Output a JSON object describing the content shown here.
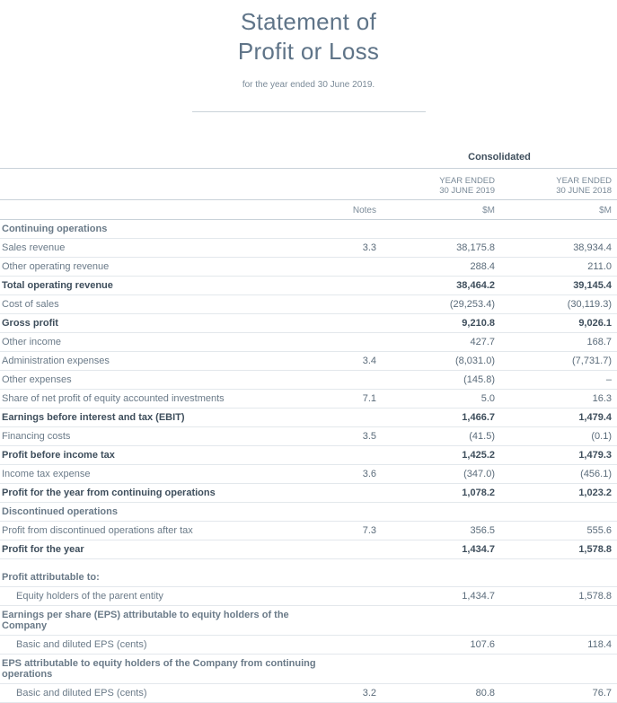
{
  "title_line1": "Statement of",
  "title_line2": "Profit or Loss",
  "subtitle": "for the year ended 30 June 2019.",
  "columns": {
    "group_header": "Consolidated",
    "notes_label": "Notes",
    "y1_header_line1": "YEAR ENDED",
    "y1_header_line2": "30 JUNE 2019",
    "y2_header_line1": "YEAR ENDED",
    "y2_header_line2": "30 JUNE 2018",
    "unit": "$M"
  },
  "rows": [
    {
      "type": "section",
      "label": "Continuing operations"
    },
    {
      "type": "row",
      "label": "Sales revenue",
      "note": "3.3",
      "y1": "38,175.8",
      "y2": "38,934.4"
    },
    {
      "type": "row",
      "label": "Other operating revenue",
      "note": "",
      "y1": "288.4",
      "y2": "211.0"
    },
    {
      "type": "bold",
      "label": "Total operating revenue",
      "note": "",
      "y1": "38,464.2",
      "y2": "39,145.4"
    },
    {
      "type": "row",
      "label": "Cost of sales",
      "note": "",
      "y1": "(29,253.4)",
      "y2": "(30,119.3)"
    },
    {
      "type": "bold",
      "label": "Gross profit",
      "note": "",
      "y1": "9,210.8",
      "y2": "9,026.1"
    },
    {
      "type": "row",
      "label": "Other income",
      "note": "",
      "y1": "427.7",
      "y2": "168.7"
    },
    {
      "type": "row",
      "label": "Administration expenses",
      "note": "3.4",
      "y1": "(8,031.0)",
      "y2": "(7,731.7)"
    },
    {
      "type": "row",
      "label": "Other expenses",
      "note": "",
      "y1": "(145.8)",
      "y2": "–"
    },
    {
      "type": "row",
      "label": "Share of net profit of equity accounted investments",
      "note": "7.1",
      "y1": "5.0",
      "y2": "16.3"
    },
    {
      "type": "bold",
      "label": "Earnings before interest and tax (EBIT)",
      "note": "",
      "y1": "1,466.7",
      "y2": "1,479.4"
    },
    {
      "type": "row",
      "label": "Financing costs",
      "note": "3.5",
      "y1": "(41.5)",
      "y2": "(0.1)"
    },
    {
      "type": "bold",
      "label": "Profit before income tax",
      "note": "",
      "y1": "1,425.2",
      "y2": "1,479.3"
    },
    {
      "type": "row",
      "label": "Income tax expense",
      "note": "3.6",
      "y1": "(347.0)",
      "y2": "(456.1)"
    },
    {
      "type": "bold",
      "label": "Profit for the year from continuing operations",
      "note": "",
      "y1": "1,078.2",
      "y2": "1,023.2"
    },
    {
      "type": "section",
      "label": "Discontinued operations"
    },
    {
      "type": "row",
      "label": "Profit from discontinued operations after tax",
      "note": "7.3",
      "y1": "356.5",
      "y2": "555.6"
    },
    {
      "type": "bold",
      "label": "Profit for the year",
      "note": "",
      "y1": "1,434.7",
      "y2": "1,578.8"
    },
    {
      "type": "spacer"
    },
    {
      "type": "section",
      "label": "Profit attributable to:"
    },
    {
      "type": "row",
      "indent": true,
      "label": "Equity holders of the parent entity",
      "note": "",
      "y1": "1,434.7",
      "y2": "1,578.8"
    },
    {
      "type": "section",
      "label": "Earnings per share (EPS) attributable to equity holders of the Company"
    },
    {
      "type": "row",
      "indent": true,
      "label": "Basic and diluted EPS (cents)",
      "note": "",
      "y1": "107.6",
      "y2": "118.4"
    },
    {
      "type": "section",
      "label": "EPS attributable to equity holders of the Company from continuing operations"
    },
    {
      "type": "row",
      "indent": true,
      "label": "Basic and diluted EPS (cents)",
      "note": "3.2",
      "y1": "80.8",
      "y2": "76.7"
    }
  ],
  "style": {
    "text_color": "#5a6b7a",
    "bold_color": "#3e4e5c",
    "rule_color": "#c9d2d9",
    "row_rule_color": "#e3e8ec",
    "title_color": "#5f7488",
    "background": "#ffffff"
  }
}
